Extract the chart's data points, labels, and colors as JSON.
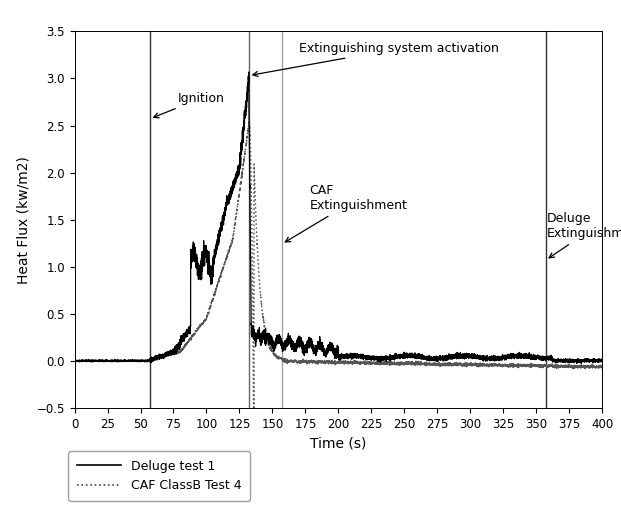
{
  "xlabel": "Time (s)",
  "ylabel": "Heat Flux (kw/m2)",
  "xlim": [
    0,
    400
  ],
  "ylim": [
    -0.5,
    3.5
  ],
  "xticks": [
    0,
    25,
    50,
    75,
    100,
    125,
    150,
    175,
    200,
    225,
    250,
    275,
    300,
    325,
    350,
    375,
    400
  ],
  "yticks": [
    -0.5,
    0.0,
    0.5,
    1.0,
    1.5,
    2.0,
    2.5,
    3.0,
    3.5
  ],
  "vlines": [
    {
      "x": 57,
      "color": "#333333",
      "lw": 1.0
    },
    {
      "x": 132,
      "color": "#666666",
      "lw": 1.0
    },
    {
      "x": 157,
      "color": "#999999",
      "lw": 0.9
    },
    {
      "x": 357,
      "color": "#333333",
      "lw": 1.0
    }
  ],
  "legend": [
    {
      "label": "Deluge test 1",
      "linestyle": "-",
      "color": "#000000"
    },
    {
      "label": "CAF ClassB Test 4",
      "linestyle": ":",
      "color": "#444444"
    }
  ],
  "background_color": "#ffffff",
  "line1_color": "#000000",
  "line2_color": "#555555",
  "figsize": [
    6.21,
    5.23
  ],
  "dpi": 100
}
